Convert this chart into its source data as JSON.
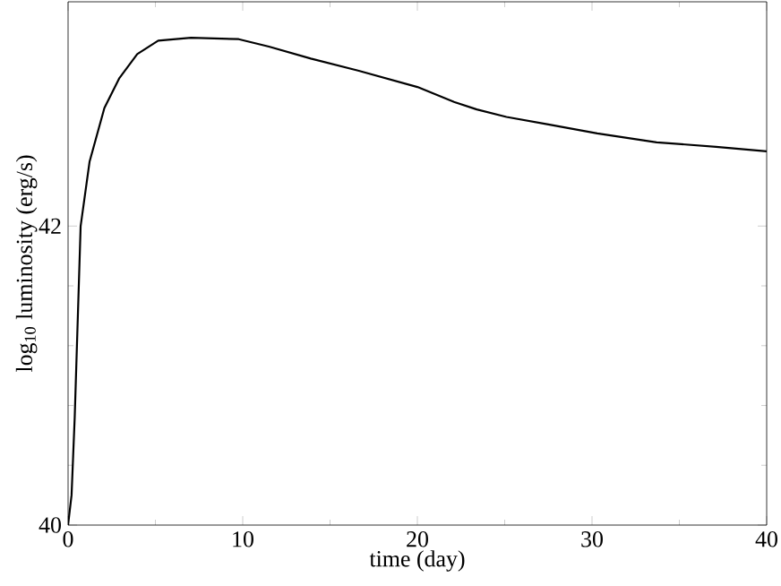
{
  "chart_data": {
    "type": "line",
    "xlabel": "time (day)",
    "ylabel": "log$_{10}$ luminosity (erg/s)",
    "xlim": [
      0,
      40
    ],
    "ylim": [
      40,
      43.5
    ],
    "xticks": [
      0,
      10,
      20,
      30,
      40
    ],
    "yticks": [
      40,
      42
    ],
    "series": [
      {
        "color": "#000000",
        "x": [
          0,
          0.2,
          0.38,
          0.72,
          1.23,
          2.08,
          2.94,
          3.96,
          5.16,
          7.04,
          9.77,
          11.5,
          13.9,
          16.6,
          20.0,
          22.1,
          23.4,
          25.1,
          27.5,
          30.3,
          33.7,
          37.1,
          40
        ],
        "values": [
          40,
          40.2,
          40.72,
          42,
          42.43,
          42.79,
          42.99,
          43.15,
          43.24,
          43.26,
          43.25,
          43.2,
          43.12,
          43.04,
          42.93,
          42.83,
          42.78,
          42.73,
          42.68,
          42.62,
          42.56,
          42.53,
          42.5
        ]
      }
    ]
  }
}
